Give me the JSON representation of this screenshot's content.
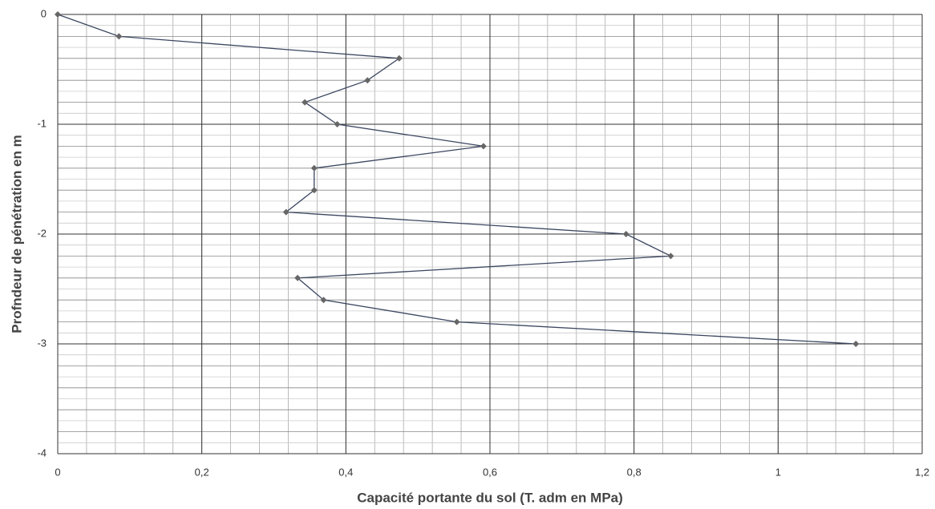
{
  "chart_data": {
    "type": "line",
    "xlabel": "Capacité portante du sol (T. adm en MPa)",
    "ylabel": "Profndeur de pénétration en m",
    "x": [
      0,
      0.085,
      0.474,
      0.43,
      0.343,
      0.388,
      0.591,
      0.356,
      0.356,
      0.317,
      0.789,
      0.851,
      0.333,
      0.369,
      0.554,
      1.108
    ],
    "series": [
      {
        "color": "#3b4660",
        "marker_color": "#666666",
        "values": [
          0,
          -0.2,
          -0.4,
          -0.6,
          -0.8,
          -1.0,
          -1.2,
          -1.4,
          -1.6,
          -1.8,
          -2.0,
          -2.2,
          -2.4,
          -2.6,
          -2.8,
          -3.0
        ]
      }
    ],
    "xlim": [
      0,
      1.2
    ],
    "xticks": [
      0,
      {
        "value": 0.2,
        "label": "0,2"
      },
      {
        "value": 0.4,
        "label": "0,4"
      },
      {
        "value": 0.6,
        "label": "0,6"
      },
      {
        "value": 0.8,
        "label": "0,8"
      },
      1,
      {
        "value": 1.2,
        "label": "1,2"
      }
    ],
    "ylim": [
      -4,
      0
    ],
    "yticks": [
      0,
      -1,
      -2,
      -3,
      -4
    ],
    "grid": true
  }
}
